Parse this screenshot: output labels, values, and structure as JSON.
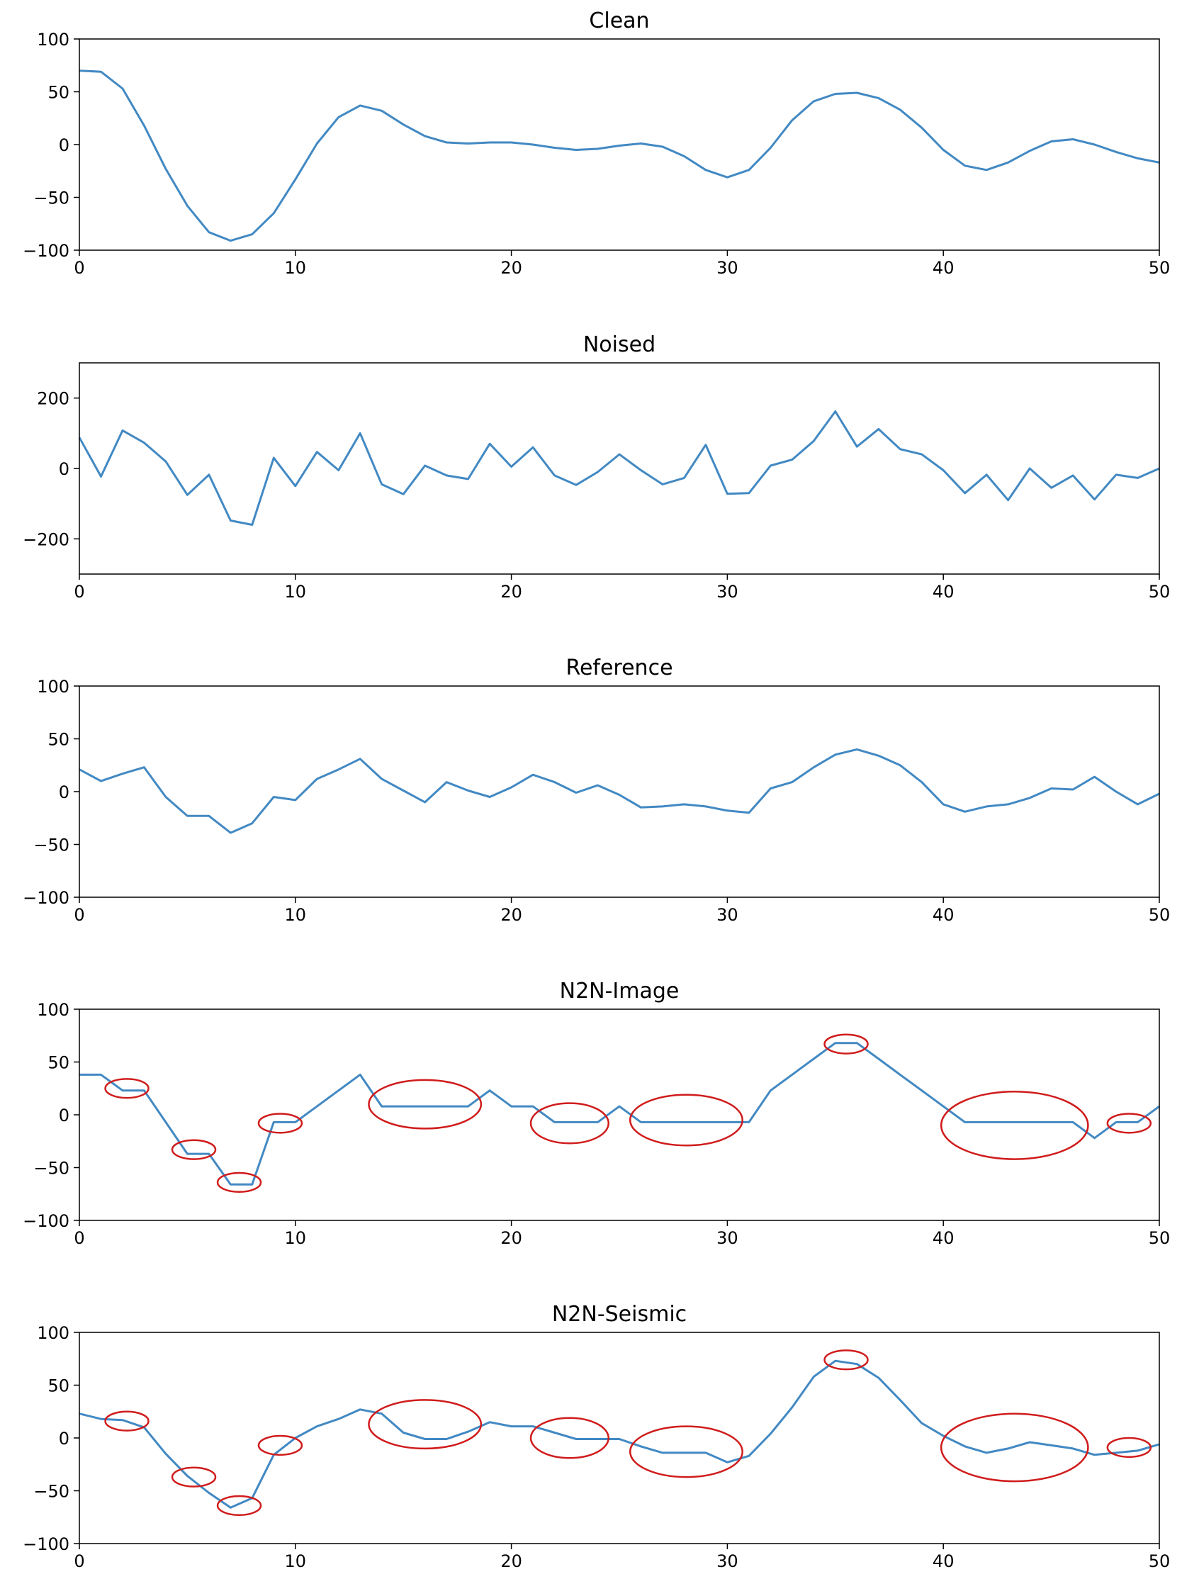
{
  "colors": {
    "series": "#4289c3",
    "highlight": "#d01c1c",
    "axis": "#000000",
    "background": "#ffffff"
  },
  "chart_data": [
    {
      "type": "line",
      "title": "Clean",
      "xlabel": "",
      "ylabel": "",
      "xlim": [
        0,
        50
      ],
      "ylim": [
        -100,
        100
      ],
      "xticks": [
        0,
        10,
        20,
        30,
        40,
        50
      ],
      "yticks": [
        100,
        50,
        0,
        -50,
        -100
      ],
      "grid": false,
      "x": [
        0,
        1,
        2,
        3,
        4,
        5,
        6,
        7,
        8,
        9,
        10,
        11,
        12,
        13,
        14,
        15,
        16,
        17,
        18,
        19,
        20,
        21,
        22,
        23,
        24,
        25,
        26,
        27,
        28,
        29,
        30,
        31,
        32,
        33,
        34,
        35,
        36,
        37,
        38,
        39,
        40,
        41,
        42,
        43,
        44,
        45,
        46,
        47,
        48,
        49,
        50
      ],
      "y": [
        70,
        69,
        53,
        18,
        -23,
        -58,
        -83,
        -91,
        -85,
        -65,
        -33,
        1,
        26,
        37,
        32,
        19,
        8,
        2,
        1,
        2,
        2,
        0,
        -3,
        -5,
        -4,
        -1,
        1,
        -2,
        -11,
        -24,
        -31,
        -24,
        -3,
        23,
        41,
        48,
        49,
        44,
        33,
        16,
        -5,
        -20,
        -24,
        -17,
        -6,
        3,
        5,
        0,
        -7,
        -13,
        -17
      ],
      "highlights": []
    },
    {
      "type": "line",
      "title": "Noised",
      "xlabel": "",
      "ylabel": "",
      "xlim": [
        0,
        50
      ],
      "ylim": [
        -300,
        300
      ],
      "xticks": [
        0,
        10,
        20,
        30,
        40,
        50
      ],
      "yticks": [
        200,
        0,
        -200
      ],
      "grid": false,
      "x": [
        0,
        1,
        2,
        3,
        4,
        5,
        6,
        7,
        8,
        9,
        10,
        11,
        12,
        13,
        14,
        15,
        16,
        17,
        18,
        19,
        20,
        21,
        22,
        23,
        24,
        25,
        26,
        27,
        28,
        29,
        30,
        31,
        32,
        33,
        34,
        35,
        36,
        37,
        38,
        39,
        40,
        41,
        42,
        43,
        44,
        45,
        46,
        47,
        48,
        49,
        50
      ],
      "y": [
        88,
        -23,
        108,
        73,
        20,
        -75,
        -18,
        -148,
        -160,
        30,
        -50,
        47,
        -5,
        100,
        -45,
        -73,
        8,
        -20,
        -30,
        70,
        5,
        60,
        -20,
        -47,
        -10,
        40,
        -5,
        -45,
        -27,
        67,
        -72,
        -70,
        8,
        25,
        78,
        162,
        62,
        112,
        55,
        40,
        -5,
        -70,
        -18,
        -90,
        0,
        -55,
        -20,
        -88,
        -18,
        -27,
        0
      ],
      "highlights": []
    },
    {
      "type": "line",
      "title": "Reference",
      "xlabel": "",
      "ylabel": "",
      "xlim": [
        0,
        50
      ],
      "ylim": [
        -100,
        100
      ],
      "xticks": [
        0,
        10,
        20,
        30,
        40,
        50
      ],
      "yticks": [
        100,
        50,
        0,
        -50,
        -100
      ],
      "grid": false,
      "x": [
        0,
        1,
        2,
        3,
        4,
        5,
        6,
        7,
        8,
        9,
        10,
        11,
        12,
        13,
        14,
        15,
        16,
        17,
        18,
        19,
        20,
        21,
        22,
        23,
        24,
        25,
        26,
        27,
        28,
        29,
        30,
        31,
        32,
        33,
        34,
        35,
        36,
        37,
        38,
        39,
        40,
        41,
        42,
        43,
        44,
        45,
        46,
        47,
        48,
        49,
        50
      ],
      "y": [
        21,
        10,
        17,
        23,
        -5,
        -23,
        -23,
        -39,
        -30,
        -5,
        -8,
        12,
        21,
        31,
        12,
        1,
        -10,
        9,
        1,
        -5,
        4,
        16,
        9,
        -1,
        6,
        -3,
        -15,
        -14,
        -12,
        -14,
        -18,
        -20,
        3,
        9,
        23,
        35,
        40,
        34,
        25,
        9,
        -12,
        -19,
        -14,
        -12,
        -6,
        3,
        2,
        14,
        0,
        -12,
        -2
      ],
      "highlights": []
    },
    {
      "type": "line",
      "title": "N2N-Image",
      "xlabel": "",
      "ylabel": "",
      "xlim": [
        0,
        50
      ],
      "ylim": [
        -100,
        100
      ],
      "xticks": [
        0,
        10,
        20,
        30,
        40,
        50
      ],
      "yticks": [
        100,
        50,
        0,
        -50,
        -100
      ],
      "grid": false,
      "x": [
        0,
        1,
        2,
        3,
        4,
        5,
        6,
        7,
        8,
        9,
        10,
        11,
        12,
        13,
        14,
        15,
        16,
        17,
        18,
        19,
        20,
        21,
        22,
        23,
        24,
        25,
        26,
        27,
        28,
        29,
        30,
        31,
        32,
        33,
        34,
        35,
        36,
        37,
        38,
        39,
        40,
        41,
        42,
        43,
        44,
        45,
        46,
        47,
        48,
        49,
        50
      ],
      "y": [
        38,
        38,
        23,
        23,
        -7,
        -37,
        -37,
        -66,
        -66,
        -7,
        -7,
        8,
        23,
        38,
        8,
        8,
        8,
        8,
        8,
        23,
        8,
        8,
        -7,
        -7,
        -7,
        8,
        -7,
        -7,
        -7,
        -7,
        -7,
        -7,
        23,
        38,
        53,
        68,
        68,
        53,
        38,
        23,
        8,
        -7,
        -7,
        -7,
        -7,
        -7,
        -7,
        -22,
        -7,
        -7,
        8
      ],
      "highlights": [
        {
          "x": 2.2,
          "y": 25,
          "rx": 1.0,
          "ry": 9
        },
        {
          "x": 5.3,
          "y": -33,
          "rx": 1.0,
          "ry": 9
        },
        {
          "x": 7.4,
          "y": -64,
          "rx": 1.0,
          "ry": 9
        },
        {
          "x": 9.3,
          "y": -8,
          "rx": 1.0,
          "ry": 9
        },
        {
          "x": 16.0,
          "y": 10,
          "rx": 2.6,
          "ry": 23
        },
        {
          "x": 22.7,
          "y": -8,
          "rx": 1.8,
          "ry": 19
        },
        {
          "x": 28.1,
          "y": -5,
          "rx": 2.6,
          "ry": 24
        },
        {
          "x": 35.5,
          "y": 67,
          "rx": 1.0,
          "ry": 9
        },
        {
          "x": 43.3,
          "y": -10,
          "rx": 3.4,
          "ry": 32
        },
        {
          "x": 48.6,
          "y": -8,
          "rx": 1.0,
          "ry": 9
        }
      ]
    },
    {
      "type": "line",
      "title": "N2N-Seismic",
      "xlabel": "",
      "ylabel": "",
      "xlim": [
        0,
        50
      ],
      "ylim": [
        -100,
        100
      ],
      "xticks": [
        0,
        10,
        20,
        30,
        40,
        50
      ],
      "yticks": [
        100,
        50,
        0,
        -50,
        -100
      ],
      "grid": false,
      "x": [
        0,
        1,
        2,
        3,
        4,
        5,
        6,
        7,
        8,
        9,
        10,
        11,
        12,
        13,
        14,
        15,
        16,
        17,
        18,
        19,
        20,
        21,
        22,
        23,
        24,
        25,
        26,
        27,
        28,
        29,
        30,
        31,
        32,
        33,
        34,
        35,
        36,
        37,
        38,
        39,
        40,
        41,
        42,
        43,
        44,
        45,
        46,
        47,
        48,
        49,
        50
      ],
      "y": [
        23,
        18,
        17,
        10,
        -15,
        -36,
        -52,
        -66,
        -57,
        -16,
        0,
        11,
        18,
        27,
        23,
        5,
        -1,
        -1,
        6,
        15,
        11,
        11,
        5,
        -1,
        -1,
        -1,
        -8,
        -14,
        -14,
        -14,
        -23,
        -17,
        4,
        29,
        58,
        73,
        70,
        57,
        36,
        14,
        2,
        -8,
        -14,
        -10,
        -4,
        -7,
        -10,
        -16,
        -14,
        -12,
        -6
      ],
      "highlights": [
        {
          "x": 2.2,
          "y": 16,
          "rx": 1.0,
          "ry": 9
        },
        {
          "x": 5.3,
          "y": -37,
          "rx": 1.0,
          "ry": 9
        },
        {
          "x": 7.4,
          "y": -64,
          "rx": 1.0,
          "ry": 9
        },
        {
          "x": 9.3,
          "y": -7,
          "rx": 1.0,
          "ry": 9
        },
        {
          "x": 16.0,
          "y": 13,
          "rx": 2.6,
          "ry": 23
        },
        {
          "x": 22.7,
          "y": 0,
          "rx": 1.8,
          "ry": 19
        },
        {
          "x": 28.1,
          "y": -13,
          "rx": 2.6,
          "ry": 24
        },
        {
          "x": 35.5,
          "y": 74,
          "rx": 1.0,
          "ry": 9
        },
        {
          "x": 43.3,
          "y": -9,
          "rx": 3.4,
          "ry": 32
        },
        {
          "x": 48.6,
          "y": -9,
          "rx": 1.0,
          "ry": 9
        }
      ]
    }
  ]
}
